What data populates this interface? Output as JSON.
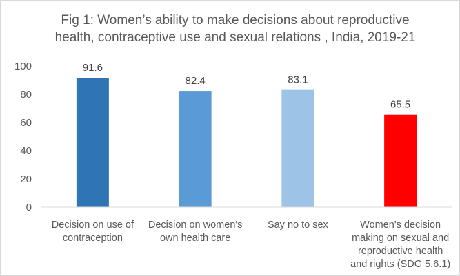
{
  "chart_data": {
    "type": "bar",
    "title_lines": [
      "Fig 1: Women’s ability to make decisions about reproductive",
      "health, contraceptive use and sexual relations , India, 2019-21"
    ],
    "categories": [
      [
        "Decision on use of",
        "contraception"
      ],
      [
        "Decision on women's",
        "own health care"
      ],
      [
        "Say no to sex"
      ],
      [
        "Women's decision",
        "making on sexual and",
        "reproductive health",
        "and rights (SDG 5.6.1)"
      ]
    ],
    "values": [
      91.6,
      82.4,
      83.1,
      65.5
    ],
    "value_labels": [
      "91.6",
      "82.4",
      "83.1",
      "65.5"
    ],
    "bar_colors": [
      "#2e75b6",
      "#5b9bd5",
      "#9dc3e6",
      "#ff0000"
    ],
    "ylim": [
      0,
      100
    ],
    "yticks": [
      "0",
      "20",
      "40",
      "60",
      "80",
      "100"
    ],
    "grid": false,
    "legend": "none"
  }
}
